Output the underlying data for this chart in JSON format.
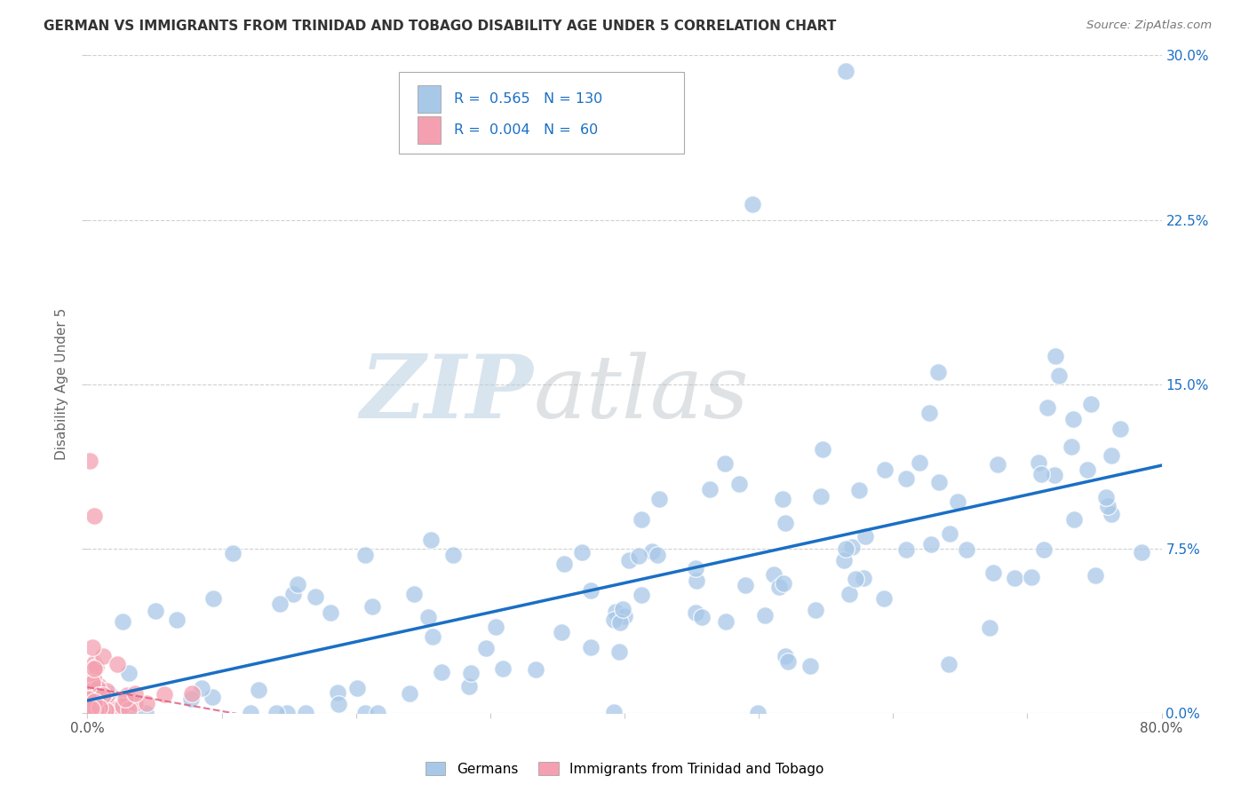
{
  "title": "GERMAN VS IMMIGRANTS FROM TRINIDAD AND TOBAGO DISABILITY AGE UNDER 5 CORRELATION CHART",
  "source": "Source: ZipAtlas.com",
  "ylabel_label": "Disability Age Under 5",
  "legend_labels": [
    "Germans",
    "Immigrants from Trinidad and Tobago"
  ],
  "blue_R": "0.565",
  "blue_N": "130",
  "pink_R": "0.004",
  "pink_N": "60",
  "blue_color": "#a8c8e8",
  "pink_color": "#f4a0b0",
  "blue_line_color": "#1a6fc4",
  "pink_line_color": "#e06080",
  "background_color": "#ffffff",
  "grid_color": "#d0d0d0",
  "xlim": [
    0.0,
    0.8
  ],
  "ylim": [
    0.0,
    0.3
  ],
  "xticks": [
    0.0,
    0.1,
    0.2,
    0.3,
    0.4,
    0.5,
    0.6,
    0.7,
    0.8
  ],
  "yticks": [
    0.0,
    0.075,
    0.15,
    0.225,
    0.3
  ]
}
